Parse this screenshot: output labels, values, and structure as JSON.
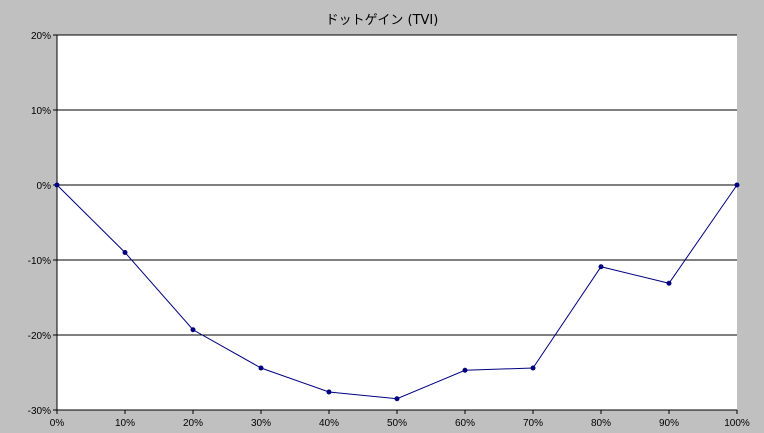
{
  "chart_data": {
    "type": "line",
    "title": "ドットゲイン (TVI)",
    "xlabel": "",
    "ylabel": "",
    "x": [
      "0%",
      "10%",
      "20%",
      "30%",
      "40%",
      "50%",
      "60%",
      "70%",
      "80%",
      "90%",
      "100%"
    ],
    "y_ticks": [
      "20%",
      "10%",
      "0%",
      "-10%",
      "-20%",
      "-30%"
    ],
    "ylim": [
      -30,
      20
    ],
    "grid": true,
    "legend": "none",
    "series": [
      {
        "values": [
          0,
          -9,
          -19.3,
          -24.4,
          -27.6,
          -28.5,
          -24.7,
          -24.4,
          -10.9,
          -13.1,
          0
        ],
        "color": "#000080"
      }
    ],
    "colors": {
      "plot_background": "#ffffff",
      "frame_background": "#c0c0c0",
      "gridline": "#000000"
    }
  }
}
